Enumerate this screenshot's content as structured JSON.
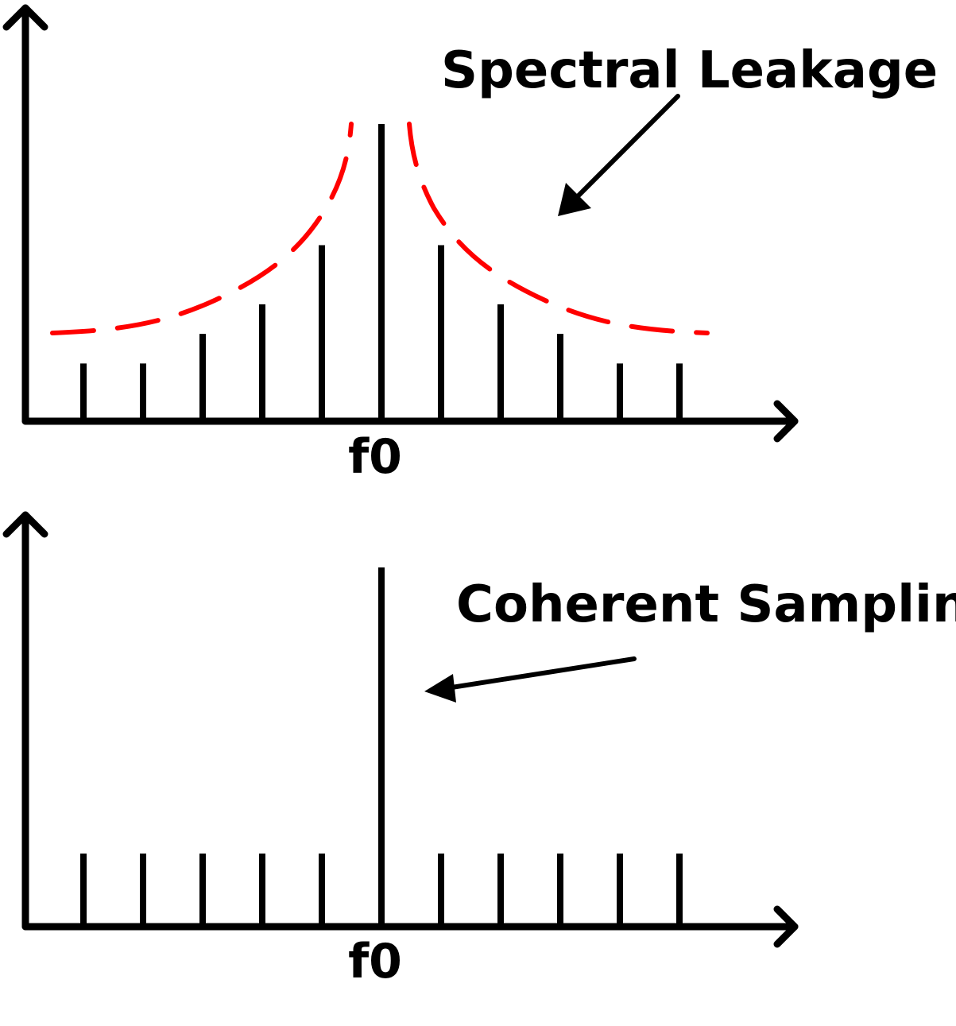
{
  "top_panel": {
    "annotation": "Spectral Leakage",
    "center_label": "f0",
    "stem_heights": [
      0.19,
      0.19,
      0.29,
      0.39,
      0.59,
      1.0,
      0.59,
      0.39,
      0.29,
      0.19,
      0.19
    ],
    "envelope_color": "#ff0000"
  },
  "bottom_panel": {
    "annotation": "Coherent Sampling",
    "center_label": "f0",
    "stem_heights": [
      0.2,
      0.2,
      0.2,
      0.2,
      0.2,
      1.0,
      0.2,
      0.2,
      0.2,
      0.2,
      0.2
    ]
  }
}
